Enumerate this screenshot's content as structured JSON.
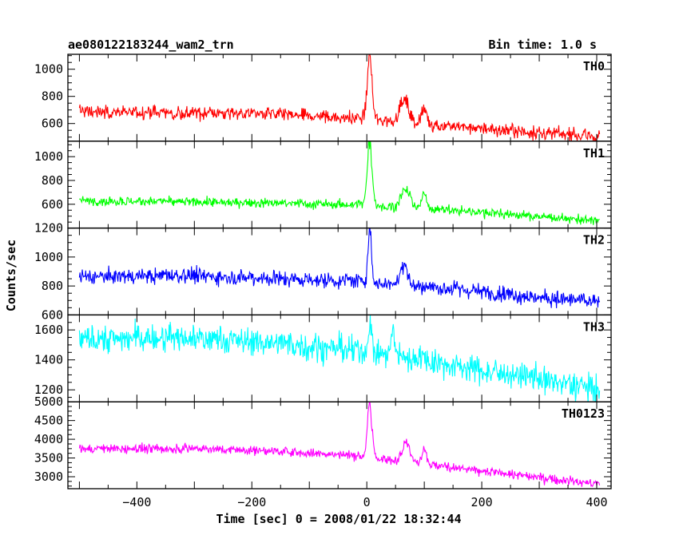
{
  "header": {
    "title": "ae080122183244_wam2_trn",
    "bin_time": "Bin time: 1.0 s"
  },
  "chart_data": {
    "type": "line",
    "xlabel": "Time [sec] 0 = 2008/01/22 18:32:44",
    "ylabel": "Counts/sec",
    "xlim": [
      -520,
      425
    ],
    "xticks": [
      -400,
      -200,
      0,
      200,
      400
    ],
    "xtick_labels": [
      "−400",
      "−200",
      "0",
      "200",
      "400"
    ],
    "panels": [
      {
        "name": "TH0",
        "color": "#ff0000",
        "ylim": [
          470,
          1110
        ],
        "yticks": [
          600,
          800,
          1000
        ],
        "ytick_labels": [
          "600",
          "800",
          "1000"
        ],
        "baseline": [
          [
            -500,
            690
          ],
          [
            -200,
            672
          ],
          [
            -50,
            645
          ],
          [
            0,
            640
          ],
          [
            30,
            620
          ],
          [
            120,
            590
          ],
          [
            200,
            560
          ],
          [
            300,
            530
          ],
          [
            405,
            505
          ]
        ],
        "noise": 45,
        "peaks": [
          [
            5,
            1080,
            4
          ],
          [
            65,
            770,
            8
          ],
          [
            100,
            700,
            5
          ]
        ]
      },
      {
        "name": "TH1",
        "color": "#00ff00",
        "ylim": [
          400,
          1130
        ],
        "yticks": [
          600,
          800,
          1000
        ],
        "ytick_labels": [
          "600",
          "800",
          "1000"
        ],
        "baseline": [
          [
            -500,
            630
          ],
          [
            -200,
            612
          ],
          [
            -50,
            598
          ],
          [
            0,
            600
          ],
          [
            30,
            580
          ],
          [
            120,
            560
          ],
          [
            200,
            530
          ],
          [
            300,
            495
          ],
          [
            405,
            460
          ]
        ],
        "noise": 35,
        "peaks": [
          [
            5,
            1130,
            4
          ],
          [
            68,
            720,
            8
          ],
          [
            100,
            690,
            4
          ]
        ]
      },
      {
        "name": "TH2",
        "color": "#0000ff",
        "ylim": [
          600,
          1200
        ],
        "yticks": [
          600,
          800,
          1000,
          1200
        ],
        "ytick_labels": [
          "600",
          "800",
          "1000",
          "1200"
        ],
        "baseline": [
          [
            -500,
            865
          ],
          [
            -300,
            870
          ],
          [
            -200,
            860
          ],
          [
            -50,
            835
          ],
          [
            0,
            835
          ],
          [
            30,
            820
          ],
          [
            120,
            790
          ],
          [
            200,
            760
          ],
          [
            300,
            720
          ],
          [
            405,
            690
          ]
        ],
        "noise": 50,
        "peaks": [
          [
            5,
            1180,
            3
          ],
          [
            65,
            960,
            6
          ]
        ]
      },
      {
        "name": "TH3",
        "color": "#00ffff",
        "ylim": [
          1120,
          1700
        ],
        "yticks": [
          1200,
          1400,
          1600
        ],
        "ytick_labels": [
          "1200",
          "1400",
          "1600"
        ],
        "baseline": [
          [
            -500,
            1540
          ],
          [
            -300,
            1545
          ],
          [
            -150,
            1510
          ],
          [
            -50,
            1470
          ],
          [
            0,
            1450
          ],
          [
            100,
            1400
          ],
          [
            200,
            1330
          ],
          [
            300,
            1270
          ],
          [
            405,
            1200
          ]
        ],
        "noise": 85,
        "peaks": [
          [
            5,
            1640,
            3
          ],
          [
            45,
            1590,
            3
          ]
        ]
      },
      {
        "name": "TH0123",
        "color": "#ff00ff",
        "ylim": [
          2680,
          5000
        ],
        "yticks": [
          3000,
          3500,
          4000,
          4500,
          5000
        ],
        "ytick_labels": [
          "3000",
          "3500",
          "4000",
          "4500",
          "5000"
        ],
        "baseline": [
          [
            -500,
            3740
          ],
          [
            -300,
            3750
          ],
          [
            -150,
            3680
          ],
          [
            -50,
            3580
          ],
          [
            0,
            3560
          ],
          [
            30,
            3450
          ],
          [
            120,
            3300
          ],
          [
            200,
            3150
          ],
          [
            300,
            2980
          ],
          [
            405,
            2800
          ]
        ],
        "noise": 110,
        "peaks": [
          [
            5,
            4900,
            4
          ],
          [
            68,
            3950,
            7
          ],
          [
            100,
            3780,
            4
          ]
        ]
      }
    ]
  }
}
